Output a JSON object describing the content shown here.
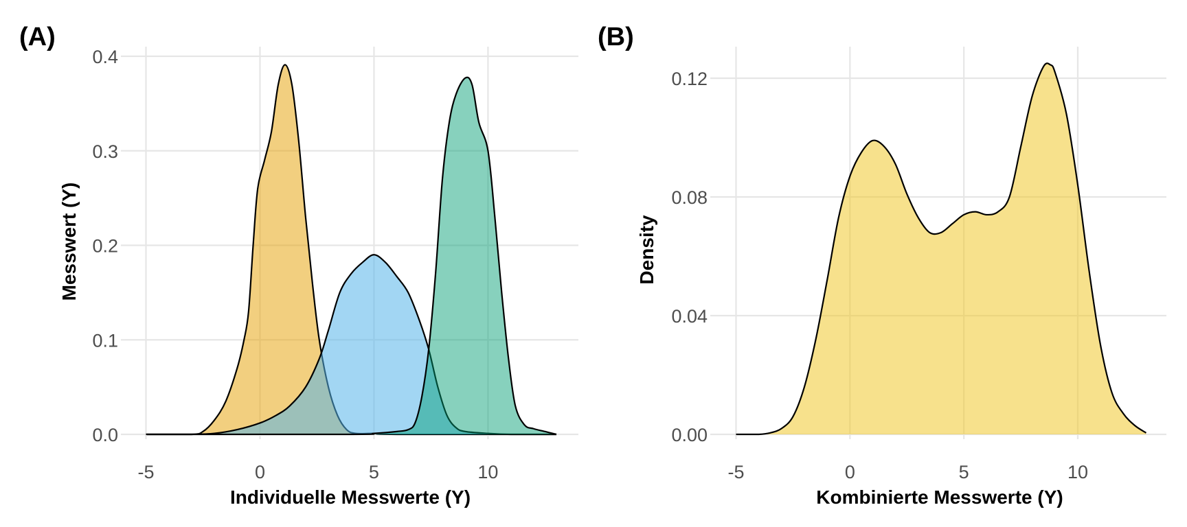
{
  "chart_data": [
    {
      "panel": "(A)",
      "type": "area",
      "title": "",
      "xlabel": "Individuelle Messwerte (Y)",
      "ylabel": "Messwert (Y)",
      "xlim": [
        -5,
        13
      ],
      "ylim": [
        0,
        0.4
      ],
      "xticks": [
        -5,
        0,
        5,
        10
      ],
      "yticks": [
        0.0,
        0.1,
        0.2,
        0.3,
        0.4
      ],
      "ytick_labels": [
        "0.0",
        "0.1",
        "0.2",
        "0.3",
        "0.4"
      ],
      "grid": true,
      "legend": "none",
      "series": [
        {
          "color": "#E69F00",
          "fill_opacity": 0.5,
          "points": [
            [
              -5,
              0
            ],
            [
              -3,
              0
            ],
            [
              -2.5,
              0.003
            ],
            [
              -2,
              0.015
            ],
            [
              -1.5,
              0.035
            ],
            [
              -1,
              0.07
            ],
            [
              -0.7,
              0.1
            ],
            [
              -0.5,
              0.13
            ],
            [
              -0.3,
              0.2
            ],
            [
              -0.1,
              0.26
            ],
            [
              0.2,
              0.29
            ],
            [
              0.5,
              0.32
            ],
            [
              0.8,
              0.37
            ],
            [
              1.1,
              0.391
            ],
            [
              1.4,
              0.37
            ],
            [
              1.7,
              0.31
            ],
            [
              2,
              0.23
            ],
            [
              2.3,
              0.16
            ],
            [
              2.6,
              0.1
            ],
            [
              3,
              0.05
            ],
            [
              3.4,
              0.02
            ],
            [
              3.8,
              0.005
            ],
            [
              4.2,
              0.001
            ],
            [
              5,
              0.001
            ],
            [
              6,
              0
            ],
            [
              13,
              0
            ]
          ]
        },
        {
          "color": "#56B4E9",
          "fill_opacity": 0.55,
          "points": [
            [
              -5,
              0
            ],
            [
              -3,
              0
            ],
            [
              -2,
              0.001
            ],
            [
              -1,
              0.005
            ],
            [
              0,
              0.012
            ],
            [
              0.7,
              0.02
            ],
            [
              1.3,
              0.03
            ],
            [
              2,
              0.05
            ],
            [
              2.6,
              0.08
            ],
            [
              3,
              0.11
            ],
            [
              3.5,
              0.15
            ],
            [
              4,
              0.17
            ],
            [
              4.5,
              0.182
            ],
            [
              5,
              0.19
            ],
            [
              5.5,
              0.182
            ],
            [
              6,
              0.167
            ],
            [
              6.5,
              0.15
            ],
            [
              7,
              0.12
            ],
            [
              7.4,
              0.09
            ],
            [
              7.8,
              0.05
            ],
            [
              8.2,
              0.02
            ],
            [
              8.6,
              0.007
            ],
            [
              9,
              0.003
            ],
            [
              10,
              0.001
            ],
            [
              11,
              0
            ],
            [
              13,
              0
            ]
          ]
        },
        {
          "color": "#009E73",
          "fill_opacity": 0.47,
          "points": [
            [
              -5,
              0
            ],
            [
              4,
              0
            ],
            [
              5,
              0.001
            ],
            [
              6,
              0.003
            ],
            [
              6.5,
              0.005
            ],
            [
              6.8,
              0.012
            ],
            [
              7.1,
              0.04
            ],
            [
              7.4,
              0.09
            ],
            [
              7.7,
              0.17
            ],
            [
              8,
              0.27
            ],
            [
              8.3,
              0.33
            ],
            [
              8.6,
              0.36
            ],
            [
              9,
              0.377
            ],
            [
              9.3,
              0.37
            ],
            [
              9.6,
              0.33
            ],
            [
              10,
              0.3
            ],
            [
              10.3,
              0.23
            ],
            [
              10.6,
              0.15
            ],
            [
              10.9,
              0.08
            ],
            [
              11.2,
              0.03
            ],
            [
              11.6,
              0.01
            ],
            [
              12,
              0.006
            ],
            [
              12.5,
              0.003
            ],
            [
              13,
              0
            ]
          ]
        }
      ]
    },
    {
      "panel": "(B)",
      "type": "area",
      "title": "",
      "xlabel": "Kombinierte Messwerte (Y)",
      "ylabel": "Density",
      "xlim": [
        -5,
        13
      ],
      "ylim": [
        0,
        0.12
      ],
      "xticks": [
        -5,
        0,
        5,
        10
      ],
      "yticks": [
        0.0,
        0.04,
        0.08,
        0.12
      ],
      "ytick_labels": [
        "0.00",
        "0.04",
        "0.08",
        "0.12"
      ],
      "grid": true,
      "legend": "none",
      "series": [
        {
          "color": "#F0C419",
          "fill_opacity": 0.5,
          "points": [
            [
              -5,
              0
            ],
            [
              -4,
              0
            ],
            [
              -3.5,
              0.0005
            ],
            [
              -3,
              0.002
            ],
            [
              -2.5,
              0.006
            ],
            [
              -2,
              0.016
            ],
            [
              -1.5,
              0.032
            ],
            [
              -1,
              0.052
            ],
            [
              -0.5,
              0.073
            ],
            [
              0,
              0.087
            ],
            [
              0.5,
              0.095
            ],
            [
              1,
              0.099
            ],
            [
              1.5,
              0.097
            ],
            [
              2,
              0.091
            ],
            [
              2.5,
              0.081
            ],
            [
              3,
              0.073
            ],
            [
              3.5,
              0.068
            ],
            [
              4,
              0.068
            ],
            [
              4.5,
              0.071
            ],
            [
              5,
              0.074
            ],
            [
              5.5,
              0.075
            ],
            [
              6,
              0.074
            ],
            [
              6.5,
              0.075
            ],
            [
              7,
              0.08
            ],
            [
              7.5,
              0.097
            ],
            [
              8,
              0.114
            ],
            [
              8.5,
              0.124
            ],
            [
              8.8,
              0.1245
            ],
            [
              9,
              0.122
            ],
            [
              9.5,
              0.108
            ],
            [
              10,
              0.084
            ],
            [
              10.5,
              0.055
            ],
            [
              11,
              0.03
            ],
            [
              11.5,
              0.014
            ],
            [
              12,
              0.007
            ],
            [
              12.5,
              0.003
            ],
            [
              13,
              0.0005
            ]
          ]
        }
      ]
    }
  ]
}
